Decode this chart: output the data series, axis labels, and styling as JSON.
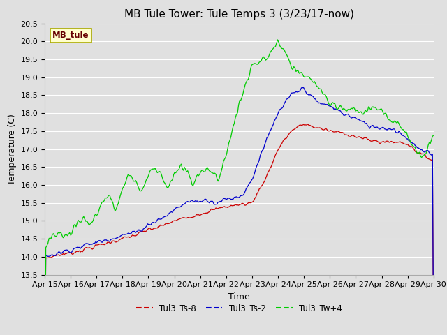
{
  "title": "MB Tule Tower: Tule Temps 3 (3/23/17-now)",
  "xlabel": "Time",
  "ylabel": "Temperature (C)",
  "ylim": [
    13.5,
    20.5
  ],
  "yticks": [
    13.5,
    14.0,
    14.5,
    15.0,
    15.5,
    16.0,
    16.5,
    17.0,
    17.5,
    18.0,
    18.5,
    19.0,
    19.5,
    20.0,
    20.5
  ],
  "xtick_labels": [
    "Apr 15",
    "Apr 16",
    "Apr 17",
    "Apr 18",
    "Apr 19",
    "Apr 20",
    "Apr 21",
    "Apr 22",
    "Apr 23",
    "Apr 24",
    "Apr 25",
    "Apr 26",
    "Apr 27",
    "Apr 28",
    "Apr 29",
    "Apr 30"
  ],
  "legend_label": "MB_tule",
  "series_labels": [
    "Tul3_Ts-8",
    "Tul3_Ts-2",
    "Tul3_Tw+4"
  ],
  "colors": [
    "#cc0000",
    "#0000cc",
    "#00cc00"
  ],
  "bg_color": "#e0e0e0",
  "grid_color": "#ffffff",
  "title_fontsize": 11,
  "axis_fontsize": 9,
  "tick_fontsize": 8,
  "red_x": [
    0,
    0.5,
    1.0,
    1.5,
    2.0,
    2.5,
    3.0,
    3.5,
    4.0,
    4.5,
    5.0,
    5.5,
    6.0,
    6.5,
    7.0,
    7.5,
    8.0,
    8.3,
    8.6,
    9.0,
    9.5,
    10.0,
    10.5,
    11.0,
    11.5,
    12.0,
    12.5,
    13.0,
    13.3,
    13.6,
    14.0,
    14.5,
    15.0
  ],
  "red_y": [
    13.95,
    14.05,
    14.1,
    14.2,
    14.3,
    14.4,
    14.5,
    14.6,
    14.75,
    14.85,
    15.0,
    15.1,
    15.2,
    15.3,
    15.4,
    15.45,
    15.5,
    15.9,
    16.3,
    17.0,
    17.5,
    17.7,
    17.6,
    17.5,
    17.45,
    17.35,
    17.25,
    17.2,
    17.2,
    17.2,
    17.15,
    16.85,
    16.7
  ],
  "blue_x": [
    0,
    0.5,
    1.0,
    1.5,
    2.0,
    2.5,
    3.0,
    3.3,
    3.6,
    4.0,
    4.3,
    4.6,
    5.0,
    5.3,
    5.6,
    6.0,
    6.3,
    6.6,
    7.0,
    7.3,
    7.6,
    8.0,
    8.3,
    8.6,
    9.0,
    9.5,
    10.0,
    10.5,
    11.0,
    11.5,
    12.0,
    12.5,
    13.0,
    13.5,
    14.0,
    14.5,
    15.0
  ],
  "blue_y": [
    14.0,
    14.1,
    14.2,
    14.3,
    14.4,
    14.5,
    14.6,
    14.65,
    14.7,
    14.9,
    15.0,
    15.1,
    15.3,
    15.45,
    15.55,
    15.55,
    15.6,
    15.5,
    15.6,
    15.65,
    15.7,
    16.15,
    16.8,
    17.3,
    18.0,
    18.5,
    18.7,
    18.3,
    18.2,
    18.0,
    17.85,
    17.65,
    17.6,
    17.55,
    17.3,
    16.95,
    16.85
  ],
  "green_x": [
    0,
    0.2,
    0.5,
    0.7,
    1.0,
    1.2,
    1.5,
    1.7,
    2.0,
    2.2,
    2.5,
    2.7,
    3.0,
    3.2,
    3.5,
    3.7,
    4.0,
    4.2,
    4.5,
    4.7,
    5.0,
    5.2,
    5.5,
    5.7,
    6.0,
    6.2,
    6.5,
    6.7,
    7.0,
    7.5,
    8.0,
    8.5,
    9.0,
    9.5,
    10.0,
    10.3,
    10.6,
    11.0,
    11.3,
    11.6,
    12.0,
    12.3,
    12.6,
    13.0,
    13.3,
    13.6,
    14.0,
    14.3,
    14.6,
    15.0
  ],
  "green_y": [
    14.3,
    14.55,
    14.7,
    14.55,
    14.7,
    14.9,
    15.1,
    14.85,
    15.2,
    15.55,
    15.7,
    15.3,
    15.9,
    16.3,
    16.1,
    15.8,
    16.3,
    16.5,
    16.3,
    15.9,
    16.3,
    16.5,
    16.35,
    16.0,
    16.35,
    16.5,
    16.35,
    16.1,
    16.95,
    18.3,
    19.35,
    19.5,
    20.0,
    19.3,
    19.0,
    18.9,
    18.7,
    18.2,
    18.15,
    18.1,
    18.1,
    18.0,
    18.2,
    18.0,
    17.8,
    17.8,
    17.35,
    16.95,
    16.75,
    17.5
  ]
}
